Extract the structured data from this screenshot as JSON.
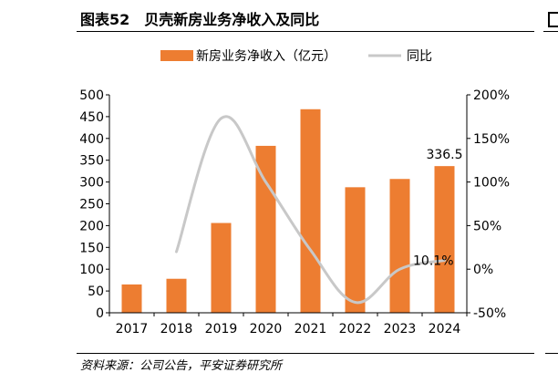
{
  "figure": {
    "title": "图表52　贝壳新房业务净收入及同比",
    "source": "资料来源：公司公告，平安证券研究所"
  },
  "chart_data": {
    "type": "bar+line",
    "categories": [
      "2017",
      "2018",
      "2019",
      "2020",
      "2021",
      "2022",
      "2023",
      "2024"
    ],
    "series": [
      {
        "name": "新房业务净收入（亿元）",
        "type": "bar",
        "axis": "left",
        "color": "#ED7D31",
        "values": [
          65,
          78,
          206,
          383,
          467,
          288,
          307,
          336.5
        ]
      },
      {
        "name": "同比",
        "type": "line",
        "axis": "right",
        "color": "#C8C8C8",
        "values": [
          null,
          20,
          173,
          100,
          22,
          -38,
          0,
          10.1
        ]
      }
    ],
    "y_left": {
      "min": 0,
      "max": 500,
      "step": 50,
      "ticks": [
        "0",
        "50",
        "100",
        "150",
        "200",
        "250",
        "300",
        "350",
        "400",
        "450",
        "500"
      ]
    },
    "y_right": {
      "min": -50,
      "max": 200,
      "step": 50,
      "ticks": [
        "-50%",
        "0%",
        "50%",
        "100%",
        "150%",
        "200%"
      ]
    },
    "annotations": [
      {
        "series": 0,
        "category": "2024",
        "text": "336.5"
      },
      {
        "series": 1,
        "category": "2024",
        "text": "10.1%"
      }
    ],
    "legend": {
      "position": "top"
    },
    "grid": false
  }
}
